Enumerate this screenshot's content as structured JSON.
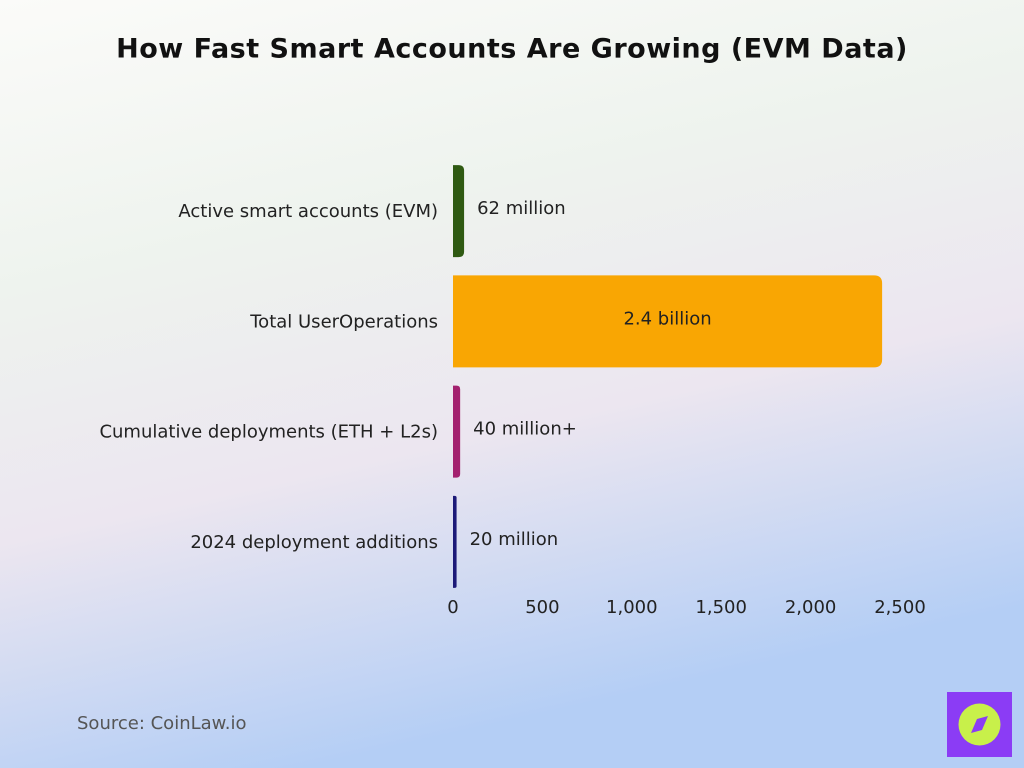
{
  "chart_data": {
    "type": "hbar",
    "title": "How Fast Smart Accounts Are Growing (EVM Data)",
    "categories": [
      "Active smart accounts (EVM)",
      "Total UserOperations",
      "Cumulative deployments (ETH + L2s)",
      "2024 deployment additions"
    ],
    "values": [
      62,
      2400,
      40,
      20
    ],
    "value_labels": [
      "62 million",
      "2.4 billion",
      "40 million+",
      "20 million"
    ],
    "colors": [
      "#2f5a12",
      "#f9a603",
      "#a3216f",
      "#1c1a78"
    ],
    "xlim": [
      0,
      2500
    ],
    "xticks": [
      0,
      500,
      {
        "value": 1000,
        "label": "1,000"
      },
      {
        "value": 1500,
        "label": "1,500"
      },
      {
        "value": 2000,
        "label": "2,000"
      },
      {
        "value": 2500,
        "label": "2,500"
      }
    ],
    "grid": false,
    "source": "Source: CoinLaw.io"
  }
}
